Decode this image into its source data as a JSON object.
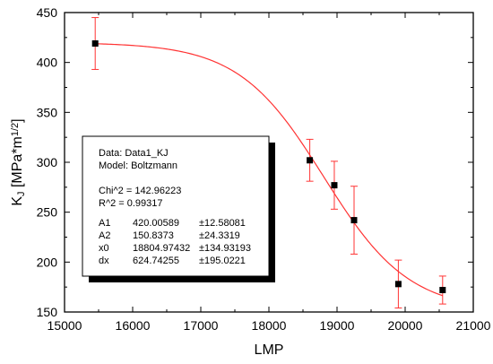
{
  "chart_data": {
    "type": "scatter",
    "xlabel": "LMP",
    "ylabel": {
      "base": "K",
      "sub": "J",
      "bracket_open": " [MPa*m",
      "sup": "1/2",
      "bracket_close": "]"
    },
    "xlim": [
      15000,
      21000
    ],
    "ylim": [
      150,
      450
    ],
    "x_ticks": [
      "15000",
      "16000",
      "17000",
      "18000",
      "19000",
      "20000",
      "21000"
    ],
    "y_ticks": [
      "150",
      "200",
      "250",
      "300",
      "350",
      "400",
      "450"
    ],
    "series": [
      {
        "x": [
          15450,
          18600,
          18960,
          19250,
          19900,
          20550
        ],
        "y": [
          419,
          302,
          277,
          242,
          178,
          172
        ],
        "err": [
          26,
          21,
          24,
          34,
          24,
          14
        ]
      }
    ],
    "fit": {
      "model": "Boltzmann",
      "A1": 420.00589,
      "A2": 150.8373,
      "x0": 18804.97432,
      "dx": 624.74255,
      "color": "#ff3333"
    },
    "fit_box": {
      "lines": [
        "Data: Data1_KJ",
        "Model: Boltzmann",
        "",
        "Chi^2   =  142.96223",
        "R^2     =  0.99317"
      ],
      "params": [
        {
          "name": "A1",
          "value": "420.00589",
          "error": "±12.58081"
        },
        {
          "name": "A2",
          "value": "150.8373",
          "error": "±24.3319"
        },
        {
          "name": "x0",
          "value": "18804.97432",
          "error": "±134.93193"
        },
        {
          "name": "dx",
          "value": "624.74255",
          "error": "±195.0221"
        }
      ]
    }
  }
}
